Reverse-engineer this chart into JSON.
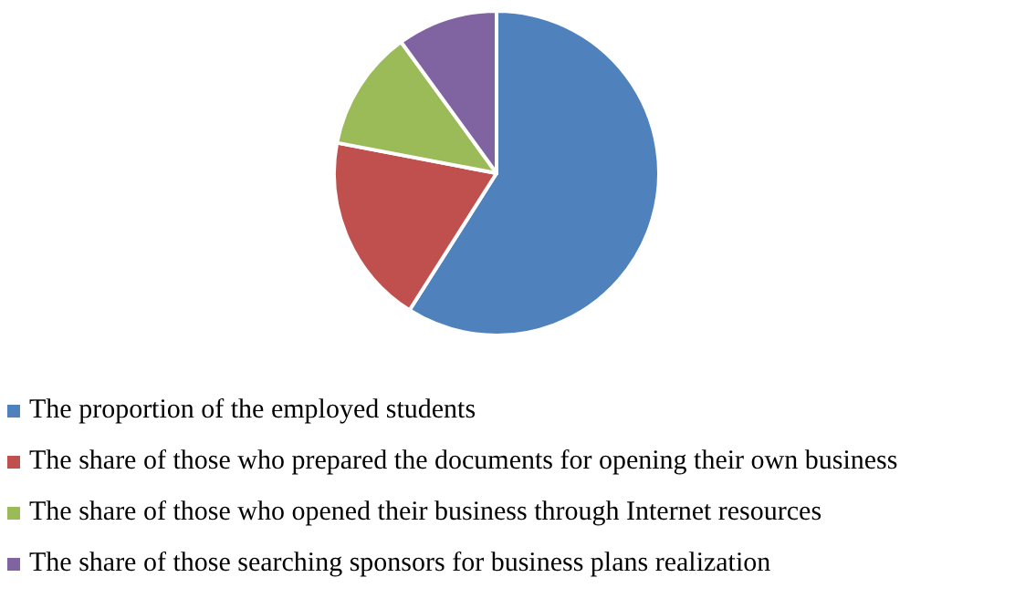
{
  "chart_data": {
    "type": "pie",
    "categories": [
      "The proportion of the employed students",
      "The share of those who prepared the documents for opening their own business",
      "The share of those who opened their business through Internet resources",
      "The share of those searching sponsors for business plans realization"
    ],
    "values": [
      59,
      19,
      12,
      10
    ],
    "colors": [
      "#4f81bd",
      "#c0504d",
      "#9bbb59",
      "#8064a2"
    ],
    "legend": "bottom"
  }
}
